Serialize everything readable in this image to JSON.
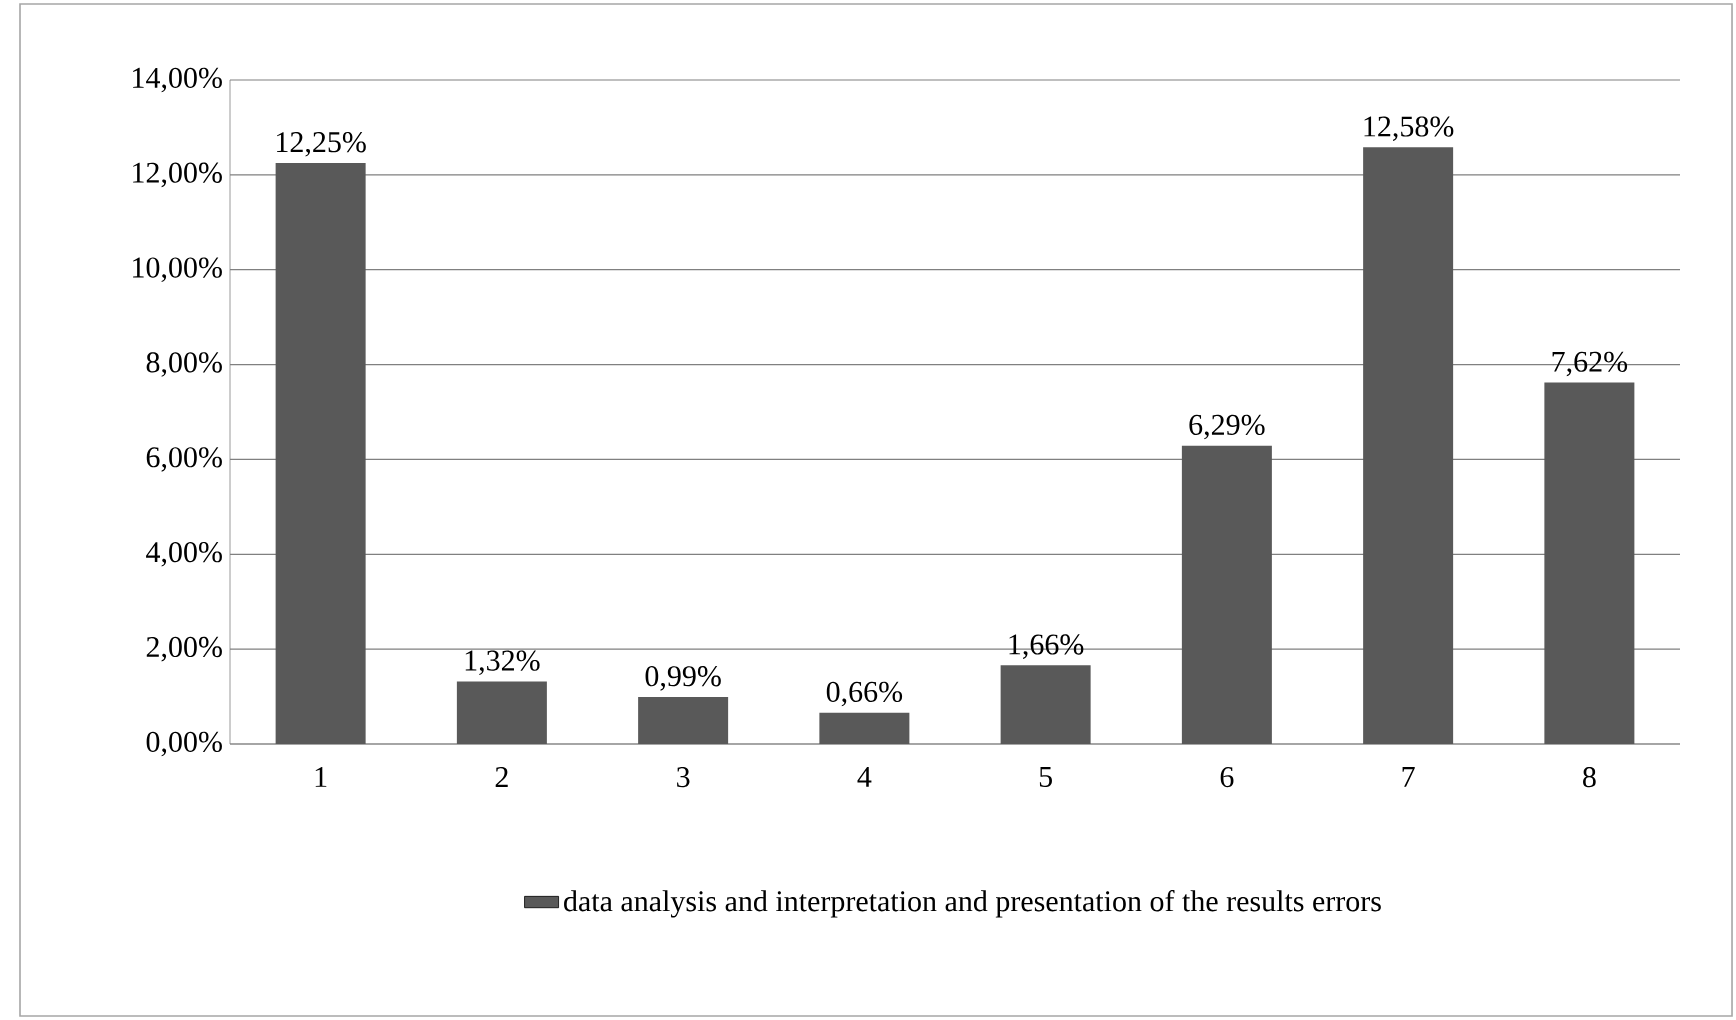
{
  "chart_data": {
    "type": "bar",
    "categories": [
      "1",
      "2",
      "3",
      "4",
      "5",
      "6",
      "7",
      "8"
    ],
    "series": [
      {
        "name": "data analysis  and interpretation and presentation of the results errors",
        "color": "#595959",
        "values": [
          12.25,
          1.32,
          0.99,
          0.66,
          1.66,
          6.29,
          12.58,
          7.62
        ],
        "value_labels": [
          "12,25%",
          "1,32%",
          "0,99%",
          "0,66%",
          "1,66%",
          "6,29%",
          "12,58%",
          "7,62%"
        ]
      }
    ],
    "ylim": [
      0,
      14
    ],
    "yticks": [
      {
        "value": 0,
        "label": "0,00%"
      },
      {
        "value": 2,
        "label": "2,00%"
      },
      {
        "value": 4,
        "label": "4,00%"
      },
      {
        "value": 6,
        "label": "6,00%"
      },
      {
        "value": 8,
        "label": "8,00%"
      },
      {
        "value": 10,
        "label": "10,00%"
      },
      {
        "value": 12,
        "label": "12,00%"
      },
      {
        "value": 14,
        "label": "14,00%"
      }
    ],
    "grid": "y",
    "legend": "bottom"
  }
}
